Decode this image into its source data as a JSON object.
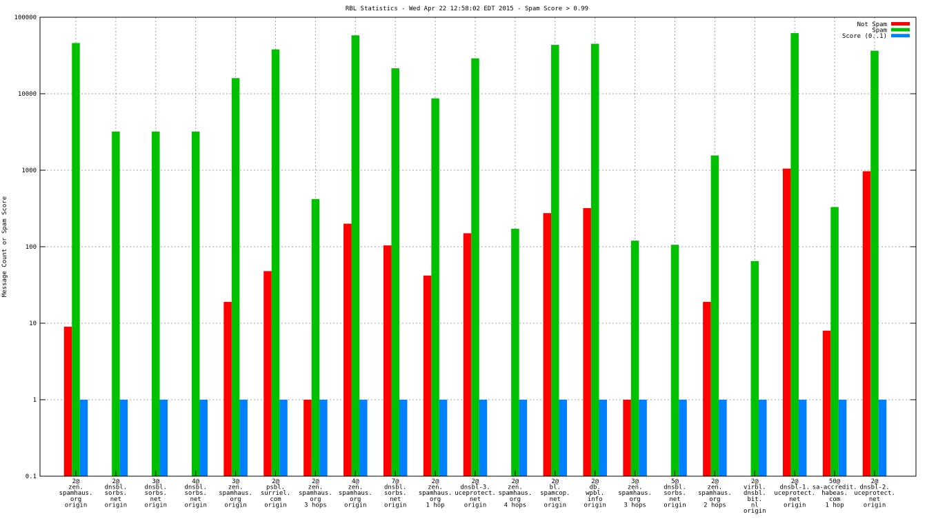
{
  "chart_data": {
    "type": "bar",
    "title": "RBL Statistics - Wed Apr 22 12:58:02 EDT 2015 - Spam Score > 0.99",
    "ylabel": "Message Count or Spam Score",
    "xlabel": "",
    "yscale": "log",
    "ylim": [
      0.1,
      100000
    ],
    "yticks": [
      "0.1",
      "1",
      "10",
      "100",
      "1000",
      "10000",
      "100000"
    ],
    "grid": true,
    "legend_position": "top-right",
    "categories": [
      [
        "2@",
        "zen.",
        "spamhaus.",
        "org",
        "origin"
      ],
      [
        "2@",
        "dnsbl.",
        "sorbs.",
        "net",
        "origin"
      ],
      [
        "3@",
        "dnsbl.",
        "sorbs.",
        "net",
        "origin"
      ],
      [
        "4@",
        "dnsbl.",
        "sorbs.",
        "net",
        "origin"
      ],
      [
        "3@",
        "zen.",
        "spamhaus.",
        "org",
        "origin"
      ],
      [
        "2@",
        "psbl.",
        "surriel.",
        "com",
        "origin"
      ],
      [
        "2@",
        "zen.",
        "spamhaus.",
        "org",
        "3 hops"
      ],
      [
        "4@",
        "zen.",
        "spamhaus.",
        "org",
        "origin"
      ],
      [
        "7@",
        "dnsbl.",
        "sorbs.",
        "net",
        "origin"
      ],
      [
        "2@",
        "zen.",
        "spamhaus.",
        "org",
        "1 hop"
      ],
      [
        "2@",
        "dnsbl-3.",
        "uceprotect.",
        "net",
        "origin"
      ],
      [
        "2@",
        "zen.",
        "spamhaus.",
        "org",
        "4 hops"
      ],
      [
        "2@",
        "bl.",
        "spamcop.",
        "net",
        "origin"
      ],
      [
        "2@",
        "db.",
        "wpbl.",
        "info",
        "origin"
      ],
      [
        "3@",
        "zen.",
        "spamhaus.",
        "org",
        "3 hops"
      ],
      [
        "5@",
        "dnsbl.",
        "sorbs.",
        "net",
        "origin"
      ],
      [
        "2@",
        "zen.",
        "spamhaus.",
        "org",
        "2 hops"
      ],
      [
        "2@",
        "virbl.",
        "dnsbl.",
        "bit.",
        "nl",
        "origin"
      ],
      [
        "2@",
        "dnsbl-1.",
        "uceprotect.",
        "net",
        "origin"
      ],
      [
        "50@",
        "sa-accredit.",
        "habeas.",
        "com",
        "1 hop"
      ],
      [
        "2@",
        "dnsbl-2.",
        "uceprotect.",
        "net",
        "origin"
      ]
    ],
    "series": [
      {
        "name": "Not Spam",
        "color": "#ff0000",
        "values": [
          9,
          null,
          null,
          null,
          19,
          48,
          1,
          200,
          104,
          42,
          150,
          null,
          275,
          320,
          1,
          null,
          19,
          null,
          1050,
          8,
          970
        ]
      },
      {
        "name": "Spam",
        "color": "#00c000",
        "values": [
          46000,
          3200,
          3200,
          3200,
          16000,
          38000,
          420,
          58000,
          21500,
          8700,
          29000,
          172,
          43500,
          45000,
          120,
          106,
          1560,
          65,
          62000,
          330,
          36500
        ]
      },
      {
        "name": "Score (0..1)",
        "color": "#0080ff",
        "values": [
          1,
          1,
          1,
          1,
          1,
          1,
          1,
          1,
          1,
          1,
          1,
          1,
          1,
          1,
          1,
          1,
          1,
          1,
          1,
          1,
          1
        ]
      }
    ]
  }
}
